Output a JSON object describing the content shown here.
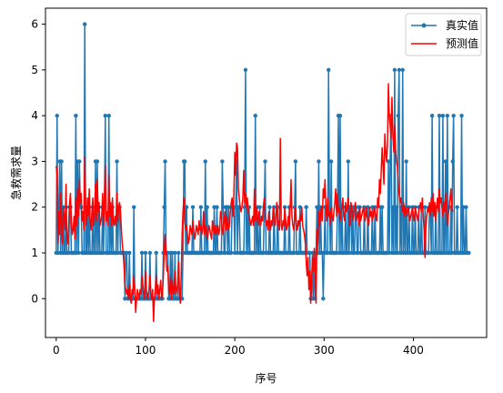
{
  "chart_data": {
    "type": "line",
    "xlabel": "序号",
    "ylabel": "急救需求量",
    "xlim": [
      -12,
      482
    ],
    "ylim": [
      -0.85,
      6.35
    ],
    "xticks": [
      0,
      100,
      200,
      300,
      400
    ],
    "yticks": [
      0,
      1,
      2,
      3,
      4,
      5,
      6
    ],
    "grid": false,
    "legend_position": "top-right",
    "series": [
      {
        "name": "真实值",
        "color": "#1f77b4",
        "marker": "circle",
        "x_start": 0,
        "values": [
          1,
          4,
          1,
          2,
          3,
          1,
          3,
          1,
          2,
          1,
          1,
          2,
          1,
          1,
          1,
          2,
          2,
          1,
          1,
          1,
          1,
          1,
          4,
          1,
          3,
          1,
          3,
          2,
          2,
          1,
          1,
          1,
          6,
          1,
          1,
          2,
          1,
          2,
          1,
          1,
          1,
          2,
          1,
          1,
          3,
          1,
          3,
          1,
          2,
          1,
          1,
          1,
          2,
          1,
          2,
          4,
          1,
          1,
          1,
          4,
          1,
          2,
          1,
          2,
          1,
          1,
          1,
          1,
          3,
          1,
          2,
          2,
          1,
          1,
          1,
          1,
          1,
          0,
          1,
          1,
          0,
          0,
          1,
          0,
          0,
          0,
          0,
          2,
          0,
          0,
          0,
          0,
          0,
          0,
          0,
          0,
          1,
          0,
          0,
          0,
          1,
          0,
          0,
          0,
          0,
          1,
          0,
          0,
          0,
          0,
          0,
          0,
          1,
          0,
          0,
          0,
          0,
          0,
          0,
          0,
          1,
          2,
          3,
          1,
          1,
          1,
          0,
          0,
          1,
          0,
          1,
          0,
          0,
          1,
          0,
          0,
          0,
          1,
          0,
          0,
          0,
          0,
          1,
          3,
          3,
          1,
          2,
          1,
          1,
          1,
          1,
          1,
          1,
          2,
          1,
          1,
          1,
          1,
          1,
          1,
          1,
          1,
          2,
          1,
          1,
          1,
          1,
          3,
          1,
          2,
          1,
          1,
          1,
          1,
          1,
          1,
          1,
          2,
          1,
          1,
          2,
          1,
          1,
          1,
          1,
          1,
          3,
          2,
          1,
          1,
          2,
          2,
          1,
          2,
          1,
          1,
          1,
          2,
          2,
          2,
          1,
          2,
          3,
          1,
          2,
          2,
          1,
          1,
          1,
          1,
          1,
          2,
          5,
          1,
          2,
          1,
          2,
          1,
          1,
          1,
          1,
          1,
          1,
          4,
          1,
          2,
          1,
          1,
          2,
          1,
          1,
          1,
          1,
          2,
          3,
          1,
          1,
          1,
          1,
          2,
          1,
          1,
          1,
          1,
          2,
          1,
          1,
          1,
          2,
          1,
          1,
          1,
          1,
          1,
          1,
          1,
          2,
          1,
          1,
          1,
          1,
          2,
          1,
          1,
          1,
          1,
          1,
          2,
          3,
          1,
          1,
          1,
          1,
          2,
          1,
          1,
          1,
          1,
          1,
          1,
          2,
          1,
          1,
          1,
          1,
          0,
          0,
          1,
          0,
          1,
          0,
          1,
          2,
          1,
          3,
          1,
          2,
          1,
          1,
          0,
          1,
          2,
          1,
          1,
          1,
          5,
          2,
          1,
          3,
          1,
          1,
          1,
          1,
          1,
          1,
          2,
          4,
          1,
          4,
          1,
          2,
          1,
          1,
          1,
          2,
          1,
          1,
          3,
          1,
          2,
          2,
          1,
          2,
          1,
          1,
          2,
          2,
          1,
          1,
          2,
          2,
          1,
          1,
          1,
          1,
          2,
          1,
          1,
          1,
          2,
          1,
          1,
          1,
          1,
          2,
          1,
          1,
          2,
          1,
          1,
          1,
          1,
          1,
          2,
          1,
          2,
          1,
          1,
          1,
          1,
          1,
          1,
          3,
          1,
          3,
          4,
          1,
          2,
          1,
          5,
          1,
          2,
          1,
          4,
          5,
          1,
          2,
          1,
          5,
          1,
          2,
          1,
          3,
          1,
          1,
          2,
          1,
          1,
          1,
          2,
          1,
          1,
          2,
          1,
          1,
          1,
          2,
          1,
          1,
          2,
          1,
          1,
          1,
          2,
          1,
          1,
          1,
          1,
          2,
          2,
          1,
          4,
          1,
          1,
          1,
          2,
          1,
          1,
          1,
          4,
          1,
          1,
          1,
          4,
          1,
          1,
          3,
          1,
          4,
          1,
          1,
          1,
          2,
          1,
          3,
          4,
          1,
          1,
          1,
          2,
          1,
          1,
          1,
          1,
          4,
          1,
          2,
          1,
          1,
          2,
          1,
          1,
          1
        ]
      },
      {
        "name": "预测值",
        "color": "#ff0000",
        "marker": "none",
        "x_start": 0,
        "values": [
          2.9,
          2.7,
          1.2,
          1.9,
          1.4,
          2.3,
          1.6,
          1.2,
          2.0,
          1.8,
          1.5,
          2.5,
          1.3,
          1.2,
          1.6,
          2.1,
          2.3,
          1.7,
          1.4,
          1.5,
          1.8,
          1.3,
          2.2,
          1.6,
          2.4,
          1.8,
          2.6,
          2.1,
          2.3,
          1.7,
          1.9,
          1.5,
          3.1,
          2.0,
          1.6,
          2.2,
          1.8,
          2.4,
          1.7,
          1.5,
          1.9,
          2.2,
          1.6,
          1.8,
          2.5,
          1.7,
          2.6,
          1.9,
          2.1,
          1.6,
          1.7,
          1.8,
          2.3,
          1.6,
          2.2,
          2.9,
          1.7,
          1.9,
          1.6,
          2.7,
          1.8,
          2.1,
          1.6,
          2.2,
          1.7,
          1.6,
          1.8,
          1.6,
          2.3,
          1.7,
          2.0,
          2.1,
          1.9,
          1.5,
          1.2,
          1.0,
          0.7,
          0.3,
          0.2,
          0.1,
          0.2,
          0.0,
          0.3,
          0.0,
          -0.1,
          0.2,
          0.1,
          0.5,
          0.2,
          -0.3,
          0.0,
          0.2,
          0.1,
          0.0,
          0.2,
          0.1,
          0.5,
          0.3,
          0.1,
          0.0,
          0.6,
          0.2,
          0.0,
          0.1,
          0.2,
          0.5,
          0.1,
          0.0,
          0.2,
          -0.5,
          0.0,
          0.2,
          0.5,
          0.1,
          0.3,
          0.0,
          0.2,
          0.4,
          0.0,
          0.1,
          0.5,
          1.0,
          1.4,
          1.0,
          0.6,
          0.7,
          0.2,
          0.1,
          0.5,
          0.0,
          0.4,
          0.2,
          0.1,
          0.6,
          0.1,
          0.2,
          0.3,
          0.8,
          0.1,
          -0.1,
          0.5,
          1.4,
          1.9,
          2.2,
          1.7,
          1.5,
          1.6,
          1.4,
          1.2,
          1.3,
          1.6,
          1.5,
          1.4,
          1.7,
          1.5,
          1.3,
          1.4,
          1.6,
          1.5,
          1.4,
          1.7,
          1.5,
          1.6,
          1.4,
          1.5,
          1.9,
          1.4,
          1.6,
          1.5,
          1.3,
          1.4,
          1.6,
          1.5,
          1.4,
          1.3,
          1.7,
          1.5,
          1.4,
          1.6,
          1.4,
          1.5,
          1.6,
          1.4,
          1.5,
          1.9,
          1.8,
          1.5,
          1.4,
          1.7,
          1.9,
          1.5,
          1.8,
          1.6,
          1.5,
          1.6,
          1.9,
          2.1,
          2.2,
          1.8,
          2.3,
          3.2,
          2.7,
          3.4,
          3.3,
          2.4,
          2.2,
          2.0,
          1.9,
          2.0,
          2.2,
          2.8,
          2.1,
          2.3,
          2.0,
          2.2,
          1.9,
          1.8,
          1.7,
          1.6,
          1.7,
          1.8,
          1.6,
          2.4,
          1.7,
          2.0,
          1.8,
          1.6,
          1.9,
          1.7,
          1.6,
          1.8,
          1.7,
          2.0,
          2.2,
          1.8,
          1.6,
          1.7,
          1.5,
          1.9,
          1.6,
          1.5,
          1.7,
          1.6,
          2.0,
          1.7,
          1.6,
          1.8,
          2.1,
          1.6,
          1.7,
          1.5,
          3.5,
          1.6,
          1.5,
          1.7,
          1.6,
          2.0,
          1.7,
          1.5,
          1.6,
          1.8,
          1.6,
          2.0,
          2.6,
          1.8,
          1.6,
          1.5,
          1.7,
          2.0,
          1.6,
          1.5,
          1.7,
          1.6,
          1.8,
          1.7,
          2.0,
          1.6,
          1.5,
          1.4,
          1.2,
          0.8,
          0.5,
          0.9,
          0.2,
          0.6,
          -0.1,
          0.4,
          0.9,
          0.6,
          1.1,
          0.7,
          -0.1,
          1.5,
          1.2,
          1.9,
          1.6,
          1.8,
          2.0,
          1.7,
          2.4,
          2.2,
          2.6,
          2.0,
          1.7,
          2.2,
          1.8,
          1.9,
          1.6,
          2.0,
          1.8,
          1.7,
          1.9,
          2.1,
          2.4,
          1.8,
          2.3,
          1.9,
          2.0,
          1.7,
          1.9,
          2.0,
          2.2,
          1.8,
          1.7,
          2.1,
          1.9,
          2.0,
          2.2,
          1.8,
          1.6,
          2.1,
          2.0,
          1.7,
          1.8,
          2.0,
          2.1,
          1.7,
          1.8,
          1.9,
          1.6,
          2.0,
          1.7,
          1.8,
          1.9,
          2.0,
          1.8,
          1.7,
          2.0,
          1.8,
          1.7,
          1.6,
          2.0,
          1.8,
          1.9,
          1.7,
          1.8,
          2.0,
          1.9,
          1.8,
          1.7,
          2.2,
          2.0,
          2.6,
          2.3,
          2.8,
          3.3,
          2.9,
          2.5,
          3.6,
          3.2,
          3.0,
          3.4,
          4.7,
          4.0,
          3.8,
          3.5,
          4.4,
          3.6,
          3.2,
          3.8,
          3.3,
          3.0,
          2.9,
          2.5,
          2.3,
          2.1,
          2.2,
          2.0,
          1.9,
          2.1,
          1.8,
          2.0,
          1.9,
          1.8,
          2.0,
          1.9,
          1.7,
          1.8,
          1.9,
          2.0,
          1.8,
          1.7,
          2.0,
          1.9,
          1.8,
          1.7,
          1.9,
          2.0,
          2.1,
          1.9,
          2.2,
          1.8,
          1.5,
          0.9,
          1.6,
          1.8,
          2.0,
          1.9,
          2.1,
          1.8,
          2.2,
          1.9,
          2.3,
          1.8,
          2.1,
          1.7,
          2.0,
          2.2,
          1.9,
          2.4,
          2.1,
          2.2,
          2.0,
          1.8,
          2.1,
          1.9,
          2.3,
          2.0,
          1.6,
          1.8,
          2.0,
          2.2,
          2.4,
          2.0,
          1.9
        ]
      }
    ]
  }
}
